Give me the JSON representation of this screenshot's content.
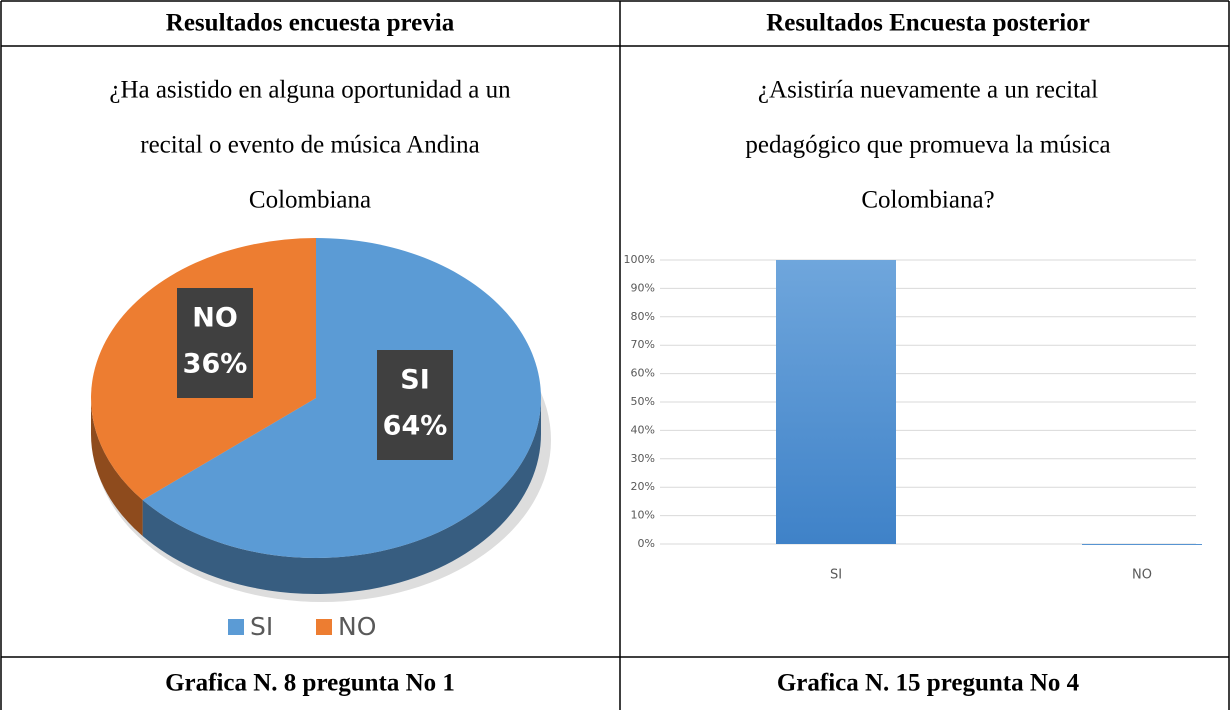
{
  "table": {
    "headers": [
      "Resultados encuesta previa",
      "Resultados Encuesta posterior"
    ],
    "questions": [
      [
        "¿Ha asistido en alguna oportunidad a un",
        "recital o evento de música Andina",
        "Colombiana"
      ],
      [
        "¿Asistiría nuevamente a un recital",
        "pedagógico que promueva la música",
        "Colombiana?"
      ]
    ],
    "captions": [
      "Grafica N. 8 pregunta No 1",
      "Grafica N. 15 pregunta No 4"
    ]
  },
  "chart_data": [
    {
      "type": "pie",
      "categories": [
        "SI",
        "NO"
      ],
      "values": [
        64,
        36
      ],
      "value_labels": [
        "64%",
        "36%"
      ],
      "colors": [
        "#5b9bd5",
        "#ed7d31"
      ],
      "legend": "bottom"
    },
    {
      "type": "bar",
      "categories": [
        "SI",
        "NO"
      ],
      "values": [
        100,
        0
      ],
      "color": "#5b9bd5",
      "ylim": [
        0,
        100
      ],
      "yticks": [
        {
          "value": 0,
          "label": "0%"
        },
        {
          "value": 10,
          "label": "10%"
        },
        {
          "value": 20,
          "label": "20%"
        },
        {
          "value": 30,
          "label": "30%"
        },
        {
          "value": 40,
          "label": "40%"
        },
        {
          "value": 50,
          "label": "50%"
        },
        {
          "value": 60,
          "label": "60%"
        },
        {
          "value": 70,
          "label": "70%"
        },
        {
          "value": 80,
          "label": "80%"
        },
        {
          "value": 90,
          "label": "90%"
        },
        {
          "value": 100,
          "label": "100%"
        }
      ],
      "grid": true
    }
  ]
}
